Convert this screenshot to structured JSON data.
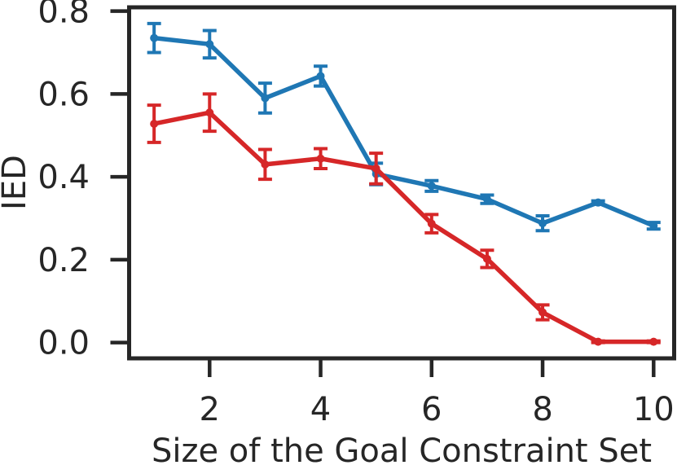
{
  "figure": {
    "background_color": "#ffffff",
    "axis_color": "#262626",
    "text_color": "#262626"
  },
  "chart_data": {
    "type": "line",
    "title": "",
    "xlabel": "Size of the Goal Constraint Set",
    "ylabel": "IED",
    "x": [
      1,
      2,
      3,
      4,
      5,
      6,
      7,
      8,
      9,
      10
    ],
    "xlim": [
      0.55,
      10.37
    ],
    "ylim": [
      -0.038,
      0.809
    ],
    "xticks": [
      2,
      4,
      6,
      8,
      10
    ],
    "xtick_labels": [
      "2",
      "4",
      "6",
      "8",
      "10"
    ],
    "yticks": [
      0.0,
      0.2,
      0.4,
      0.6,
      0.8
    ],
    "ytick_labels": [
      "0.0",
      "0.2",
      "0.4",
      "0.6",
      "0.8"
    ],
    "grid": false,
    "legend": "none",
    "marker": "circle",
    "error_bars": true,
    "series": [
      {
        "name": "blue-series",
        "color": "#1f77b4",
        "values": [
          0.735,
          0.72,
          0.59,
          0.643,
          0.407,
          0.378,
          0.346,
          0.288,
          0.338,
          0.282
        ],
        "errors": [
          0.035,
          0.033,
          0.036,
          0.024,
          0.026,
          0.013,
          0.01,
          0.018,
          0.004,
          0.008
        ]
      },
      {
        "name": "red-series",
        "color": "#d62728",
        "values": [
          0.528,
          0.555,
          0.43,
          0.444,
          0.42,
          0.287,
          0.202,
          0.073,
          0.002,
          0.002
        ],
        "errors": [
          0.045,
          0.045,
          0.036,
          0.024,
          0.037,
          0.022,
          0.021,
          0.018,
          0.002,
          0.002
        ]
      }
    ]
  }
}
